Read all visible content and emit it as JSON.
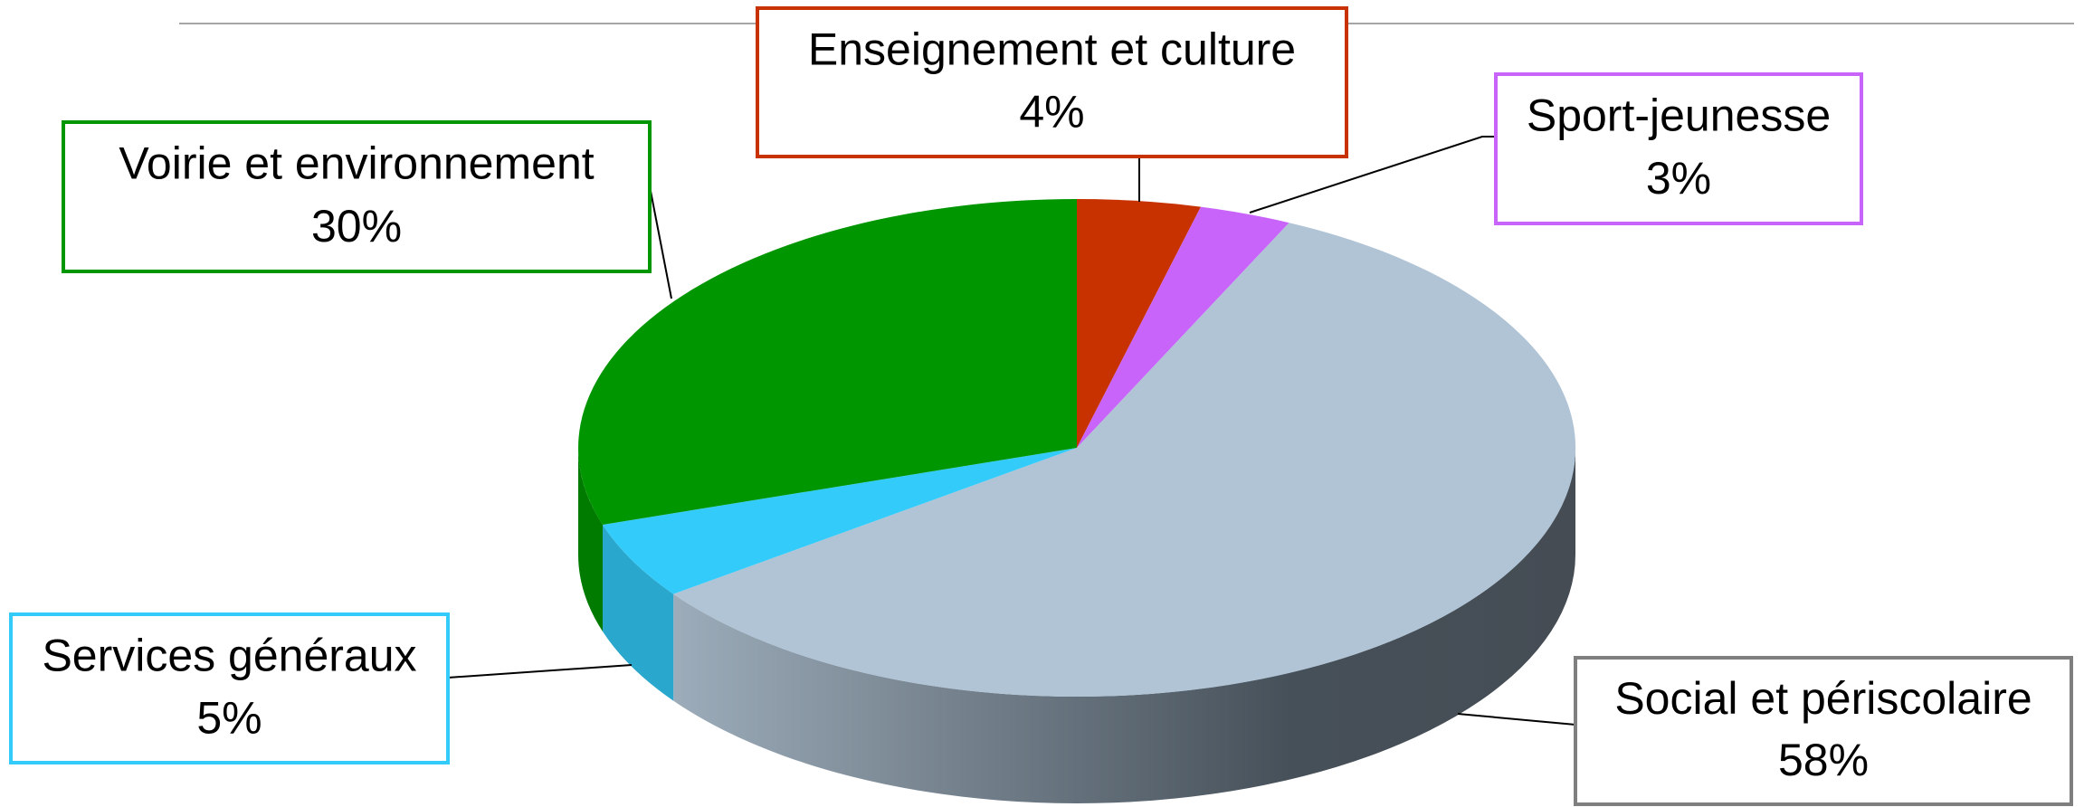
{
  "chart_data": {
    "type": "pie3d",
    "categories": [
      "Enseignement et culture",
      "Sport-jeunesse",
      "Social et périscolaire",
      "Services généraux",
      "Voirie et environnement"
    ],
    "values": [
      4,
      3,
      58,
      5,
      30
    ],
    "value_labels": [
      "4%",
      "3%",
      "58%",
      "5%",
      "30%"
    ],
    "colors": [
      "#c83200",
      "#c864fa",
      "#b0c4d6",
      "#33ccfa",
      "#009600"
    ]
  }
}
